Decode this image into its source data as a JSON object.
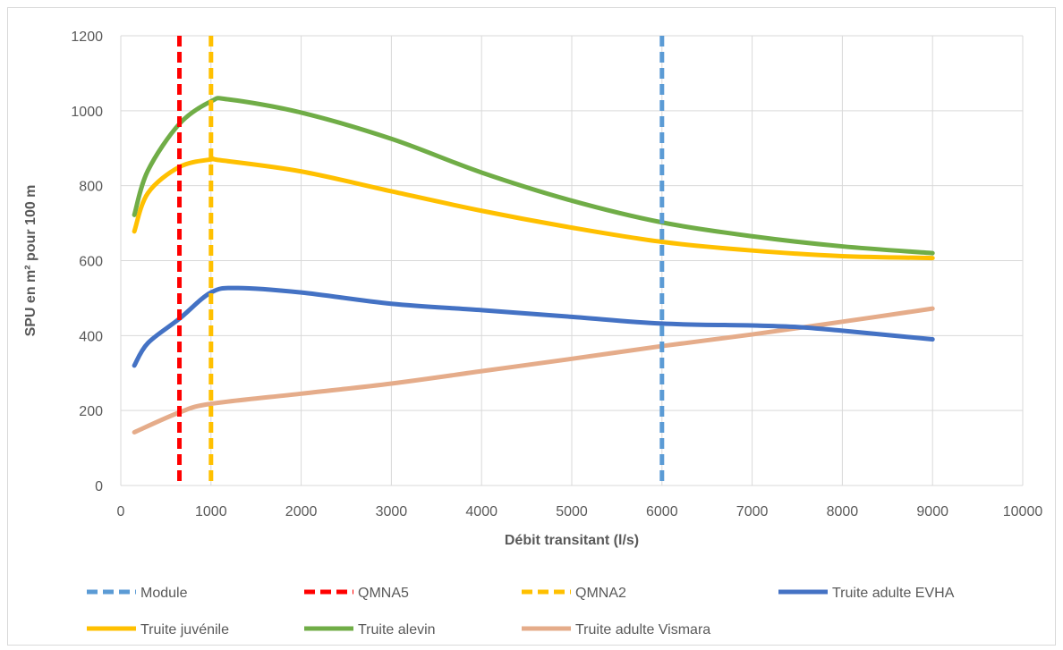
{
  "chart_data": {
    "type": "line",
    "title": "",
    "xlabel": "Débit transitant (l/s)",
    "ylabel": "SPU en m² pour 100 m",
    "xlim": [
      0,
      10000
    ],
    "ylim": [
      0,
      1200
    ],
    "x_ticks": [
      "0",
      "1000",
      "2000",
      "3000",
      "4000",
      "5000",
      "6000",
      "7000",
      "8000",
      "9000",
      "10000"
    ],
    "y_ticks": [
      "0",
      "200",
      "400",
      "600",
      "800",
      "1000",
      "1200"
    ],
    "grid": true,
    "legend_position": "bottom",
    "reference_lines": [
      {
        "name": "Module",
        "x": 6000,
        "color": "#5b9bd5",
        "style": "dashed"
      },
      {
        "name": "QMNA5",
        "x": 650,
        "color": "#ff0000",
        "style": "dashed"
      },
      {
        "name": "QMNA2",
        "x": 1000,
        "color": "#ffc000",
        "style": "dashed"
      }
    ],
    "series": [
      {
        "name": "Truite adulte EVHA",
        "color": "#4472c4",
        "x": [
          150,
          300,
          650,
          1000,
          1300,
          2000,
          3000,
          4000,
          5000,
          6000,
          7000,
          7500,
          8000,
          9000
        ],
        "y": [
          320,
          380,
          445,
          515,
          527,
          515,
          485,
          468,
          450,
          432,
          427,
          423,
          413,
          390
        ]
      },
      {
        "name": "Truite juvénile",
        "color": "#ffc000",
        "x": [
          150,
          300,
          650,
          1000,
          1100,
          2000,
          3000,
          4000,
          5000,
          6000,
          7000,
          8000,
          9000
        ],
        "y": [
          678,
          780,
          850,
          870,
          868,
          838,
          785,
          733,
          688,
          650,
          627,
          612,
          607
        ]
      },
      {
        "name": "Truite alevin",
        "color": "#70ad47",
        "x": [
          150,
          300,
          650,
          1000,
          1200,
          2000,
          3000,
          4000,
          5000,
          6000,
          7000,
          8000,
          9000
        ],
        "y": [
          722,
          840,
          965,
          1025,
          1030,
          995,
          925,
          835,
          760,
          702,
          665,
          638,
          620
        ]
      },
      {
        "name": "Truite adulte Vismara",
        "color": "#e5ac8a",
        "x": [
          150,
          650,
          1000,
          2000,
          3000,
          4000,
          5000,
          6000,
          7000,
          8000,
          9000
        ],
        "y": [
          142,
          195,
          218,
          245,
          272,
          305,
          338,
          372,
          403,
          437,
          472
        ]
      }
    ],
    "legend": [
      {
        "label": "Module",
        "color": "#5b9bd5",
        "style": "dashed"
      },
      {
        "label": "QMNA5",
        "color": "#ff0000",
        "style": "dashed"
      },
      {
        "label": "QMNA2",
        "color": "#ffc000",
        "style": "dashed"
      },
      {
        "label": "Truite adulte EVHA",
        "color": "#4472c4",
        "style": "solid"
      },
      {
        "label": "Truite juvénile",
        "color": "#ffc000",
        "style": "solid"
      },
      {
        "label": "Truite alevin",
        "color": "#70ad47",
        "style": "solid"
      },
      {
        "label": "Truite adulte Vismara",
        "color": "#e5ac8a",
        "style": "solid"
      }
    ]
  }
}
